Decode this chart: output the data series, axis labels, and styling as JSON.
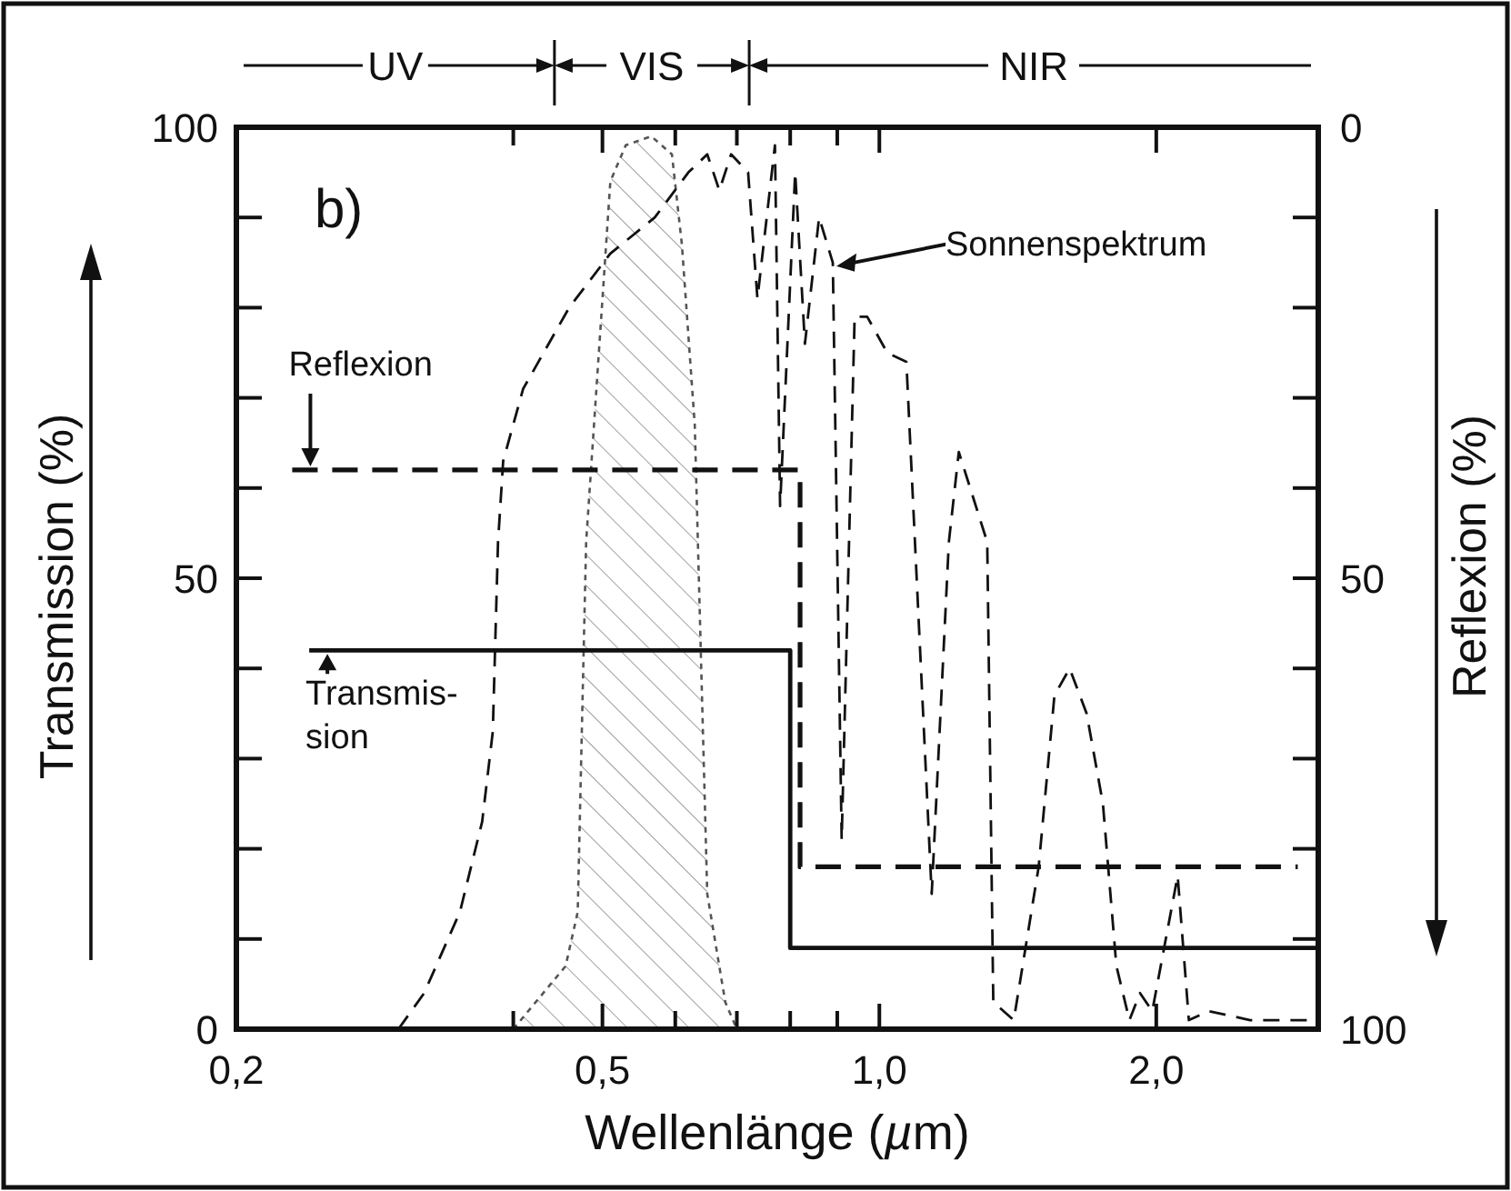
{
  "chart_data": {
    "type": "line",
    "xlabel": "Wellenlänge (µm)",
    "ylabel": "Transmission (%)",
    "y2label": "Reflexion (%)",
    "log": "x",
    "xlim": [
      0.2,
      3.0
    ],
    "xticks": [
      {
        "value": 0.2,
        "label": "0,2"
      },
      {
        "value": 0.4,
        "label": null
      },
      {
        "value": 0.5,
        "label": "0,5"
      },
      {
        "value": 0.6,
        "label": null
      },
      {
        "value": 0.7,
        "label": null
      },
      {
        "value": 0.8,
        "label": null
      },
      {
        "value": 0.9,
        "label": null
      },
      {
        "value": 1,
        "label": "1,0"
      },
      {
        "value": 2,
        "label": "2,0"
      }
    ],
    "ylim": [
      0,
      100
    ],
    "yticks": [
      0,
      {
        "value": 10,
        "label": null
      },
      {
        "value": 20,
        "label": null
      },
      {
        "value": 30,
        "label": null
      },
      {
        "value": 40,
        "label": null
      },
      50,
      {
        "value": 60,
        "label": null
      },
      {
        "value": 70,
        "label": null
      },
      {
        "value": 80,
        "label": null
      },
      {
        "value": 90,
        "label": null
      },
      100
    ],
    "y2lim": [
      100,
      0
    ],
    "y2ticks": [
      0,
      {
        "value": 10,
        "label": null
      },
      {
        "value": 20,
        "label": null
      },
      {
        "value": 30,
        "label": null
      },
      {
        "value": 40,
        "label": null
      },
      50,
      {
        "value": 60,
        "label": null
      },
      {
        "value": 70,
        "label": null
      },
      {
        "value": 80,
        "label": null
      },
      {
        "value": 90,
        "label": null
      },
      100
    ],
    "grid": false,
    "marker": "none",
    "series": [
      {
        "type": "area",
        "color": "#555555",
        "line_style": "dotted",
        "x": [
          0.4,
          0.456,
          0.47,
          0.48,
          0.51,
          0.53,
          0.565,
          0.595,
          0.61,
          0.63,
          0.65,
          0.68,
          0.7
        ],
        "values": [
          0,
          7,
          13,
          54,
          94,
          98,
          99,
          97,
          87,
          67,
          15,
          3,
          0
        ]
      },
      {
        "name": "Sonnenspektrum",
        "color": "#111111",
        "line_style": "dashed",
        "x": [
          0.3,
          0.32,
          0.35,
          0.37,
          0.38,
          0.385,
          0.39,
          0.41,
          0.46,
          0.51,
          0.57,
          0.62,
          0.65,
          0.67,
          0.69,
          0.72,
          0.737,
          0.77,
          0.78,
          0.81,
          0.83,
          0.86,
          0.89,
          0.91,
          0.94,
          0.97,
          1.02,
          1.07,
          1.14,
          1.19,
          1.22,
          1.31,
          1.33,
          1.4,
          1.49,
          1.55,
          1.61,
          1.68,
          1.75,
          1.81,
          1.87,
          1.92,
          1.98,
          2.11,
          2.17,
          2.28,
          2.53,
          2.98
        ],
        "values": [
          0,
          4,
          13,
          23,
          33,
          54,
          63,
          71,
          80,
          86,
          90,
          95,
          97,
          93,
          97,
          95,
          81,
          98,
          58,
          95,
          76,
          90,
          85,
          21,
          79,
          79,
          75,
          74,
          15,
          54,
          64,
          54,
          3,
          1,
          18,
          37,
          40,
          35,
          25,
          7,
          1,
          4,
          2,
          17,
          1,
          2,
          1,
          1
        ]
      },
      {
        "name": "Reflexion",
        "axis": "y2",
        "color": "#111111",
        "line_style": "dashed",
        "x": [
          0.23,
          0.82,
          0.82,
          2.85
        ],
        "values": [
          38,
          38,
          82,
          82
        ]
      },
      {
        "name": "Transmis-\nsion",
        "color": "#111111",
        "line_style": "solid",
        "x": [
          0.24,
          0.8,
          0.8,
          3.0
        ],
        "values": [
          42,
          42,
          9,
          9
        ]
      }
    ],
    "annotations": [
      "b)",
      "UV",
      "VIS",
      "NIR"
    ]
  }
}
